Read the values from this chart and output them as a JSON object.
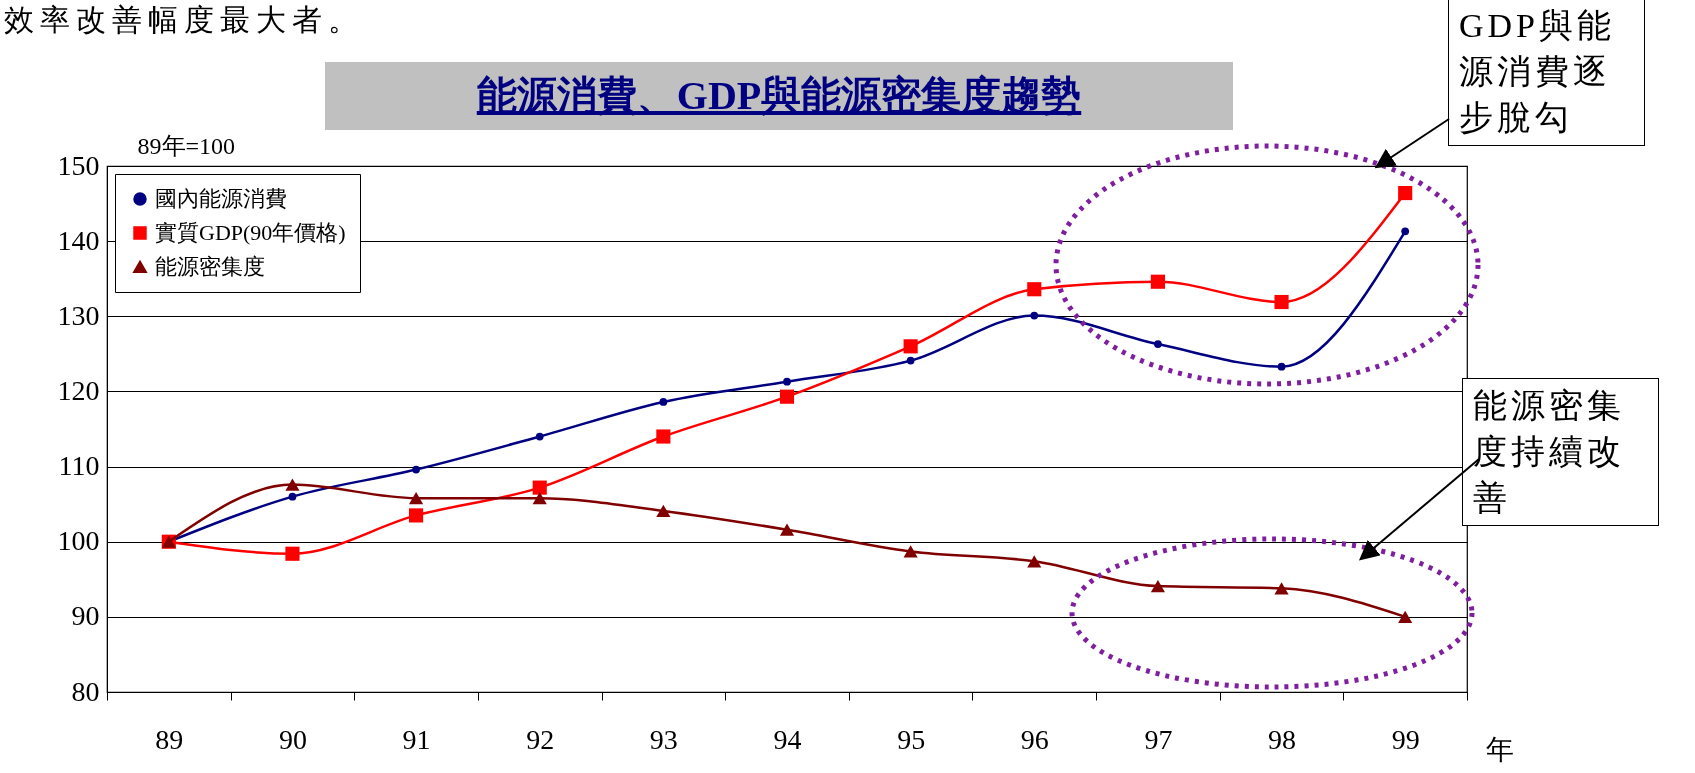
{
  "chart_data": {
    "type": "line",
    "title": "能源消費、GDP與能源密集度趨勢",
    "ylabel": "89年=100",
    "xlabel": "年",
    "categories": [
      "89",
      "90",
      "91",
      "92",
      "93",
      "94",
      "95",
      "96",
      "97",
      "98",
      "99"
    ],
    "series": [
      {
        "name": "國內能源消費",
        "color": "#000080",
        "marker": "circle",
        "values": [
          100,
          106,
          109.6,
          114,
          118.6,
          121.3,
          124.1,
          130.1,
          126.3,
          123.3,
          141.3
        ]
      },
      {
        "name": "實質GDP(90年價格)",
        "color": "#ff0000",
        "marker": "square",
        "values": [
          100,
          98.4,
          103.5,
          107.2,
          114,
          119.3,
          126,
          133.6,
          134.6,
          131.9,
          146.4
        ]
      },
      {
        "name": "能源密集度",
        "color": "#800000",
        "marker": "triangle",
        "values": [
          100,
          107.6,
          105.8,
          105.8,
          104.1,
          101.6,
          98.7,
          97.4,
          94.1,
          93.8,
          90
        ]
      }
    ],
    "ylim": [
      80,
      150
    ],
    "yticks": [
      80,
      90,
      100,
      110,
      120,
      130,
      140,
      150
    ],
    "grid": "y",
    "legend": "top left",
    "line_style": "solid",
    "annotations": [
      "效率改善幅度最大者。",
      "GDP與能源消費逐步脫勾",
      "能源密集度持續改善"
    ]
  }
}
